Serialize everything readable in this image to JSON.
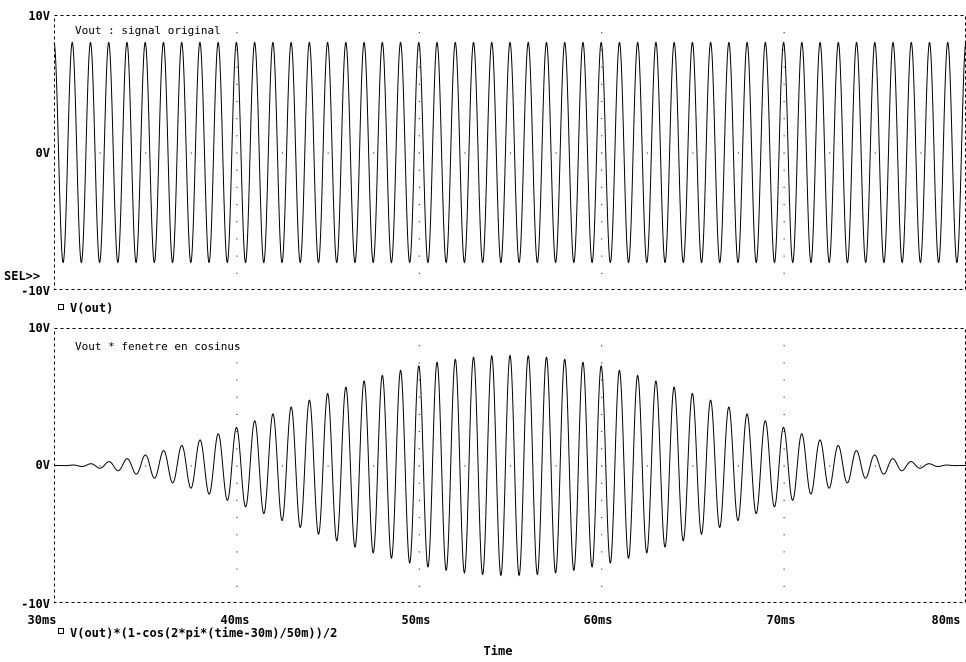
{
  "chart_data": [
    {
      "type": "line",
      "annotation": "Vout : signal original",
      "legend": "V(out)",
      "selector": "SEL>>",
      "x_unit": "ms",
      "xlim": [
        30,
        80
      ],
      "ylim": [
        -10,
        10
      ],
      "yticks": [
        "10V",
        "0V",
        "-10V"
      ],
      "grid": "dotted",
      "series": [
        {
          "name": "V(out)",
          "function": "sine",
          "amplitude": 8,
          "frequency_hz": 1000,
          "phase_deg": 90,
          "x_start": 30,
          "x_end": 80
        }
      ]
    },
    {
      "type": "line",
      "annotation": "Vout * fenetre en cosinus",
      "legend": "V(out)*(1-cos(2*pi*(time-30m)/50m))/2",
      "xlim": [
        30,
        80
      ],
      "ylim": [
        -10,
        10
      ],
      "yticks": [
        "10V",
        "0V",
        "-10V"
      ],
      "xticks": [
        "30ms",
        "40ms",
        "50ms",
        "60ms",
        "70ms",
        "80ms"
      ],
      "xlabel": "Time",
      "grid": "dotted",
      "series": [
        {
          "name": "V(out)*(1-cos(2*pi*(time-30m)/50m))/2",
          "function": "sine_times_hann_window",
          "amplitude": 8,
          "frequency_hz": 1000,
          "phase_deg": 90,
          "window_start": 30,
          "window_length": 50,
          "x_start": 30,
          "x_end": 80
        }
      ]
    }
  ]
}
